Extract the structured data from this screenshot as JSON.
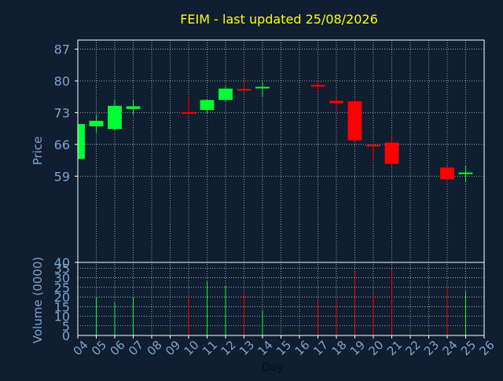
{
  "chart_data": [
    {
      "type": "candlestick",
      "title": "FEIM - last updated 25/08/2026",
      "ylabel": "Price",
      "xlabel": "Day",
      "ylim": [
        40,
        89
      ],
      "yticks": [
        40,
        59,
        66,
        73,
        80,
        87
      ],
      "x_ticks": [
        "04",
        "05",
        "06",
        "07",
        "08",
        "09",
        "10",
        "11",
        "12",
        "13",
        "14",
        "15",
        "16",
        "17",
        "18",
        "19",
        "20",
        "21",
        "22",
        "23",
        "24",
        "25",
        "26"
      ],
      "grid": true,
      "colors": {
        "up": "#00ff33",
        "down": "#ff0000",
        "axis_text": "#7fa3cc",
        "title": "#ffff00",
        "background": "#0f1e30",
        "grid": "#ffffff"
      },
      "candles": [
        {
          "day": "04",
          "open": 62.8,
          "high": 70.5,
          "low": 62.8,
          "close": 70.5
        },
        {
          "day": "05",
          "open": 70.0,
          "high": 72.5,
          "low": 68.5,
          "close": 71.2
        },
        {
          "day": "06",
          "open": 69.4,
          "high": 75.8,
          "low": 69.0,
          "close": 74.5
        },
        {
          "day": "07",
          "open": 73.8,
          "high": 76.0,
          "low": 72.5,
          "close": 74.4
        },
        {
          "day": "10",
          "open": 73.1,
          "high": 76.4,
          "low": 72.8,
          "close": 72.9
        },
        {
          "day": "11",
          "open": 73.6,
          "high": 76.0,
          "low": 73.0,
          "close": 75.8
        },
        {
          "day": "12",
          "open": 75.8,
          "high": 78.8,
          "low": 75.5,
          "close": 78.3
        },
        {
          "day": "13",
          "open": 78.2,
          "high": 80.5,
          "low": 77.8,
          "close": 78.0
        },
        {
          "day": "14",
          "open": 78.5,
          "high": 79.8,
          "low": 76.6,
          "close": 78.7
        },
        {
          "day": "17",
          "open": 79.1,
          "high": 80.2,
          "low": 77.3,
          "close": 78.8
        },
        {
          "day": "18",
          "open": 75.6,
          "high": 76.4,
          "low": 73.2,
          "close": 75.1
        },
        {
          "day": "19",
          "open": 75.5,
          "high": 76.1,
          "low": 66.6,
          "close": 66.9
        },
        {
          "day": "20",
          "open": 65.9,
          "high": 66.1,
          "low": 62.3,
          "close": 65.6
        },
        {
          "day": "21",
          "open": 66.4,
          "high": 67.6,
          "low": 61.6,
          "close": 61.7
        },
        {
          "day": "24",
          "open": 60.9,
          "high": 61.3,
          "low": 57.6,
          "close": 58.3
        },
        {
          "day": "25",
          "open": 59.6,
          "high": 61.2,
          "low": 57.6,
          "close": 59.8
        }
      ]
    },
    {
      "type": "bar",
      "ylabel": "Volume (0000)",
      "ylim": [
        0,
        38
      ],
      "yticks": [
        0,
        5,
        10,
        15,
        20,
        25,
        30,
        35
      ],
      "volumes": [
        {
          "day": "05",
          "value": 20,
          "dir": "up"
        },
        {
          "day": "06",
          "value": 17,
          "dir": "up"
        },
        {
          "day": "07",
          "value": 20,
          "dir": "up"
        },
        {
          "day": "10",
          "value": 21,
          "dir": "down"
        },
        {
          "day": "11",
          "value": 28,
          "dir": "up"
        },
        {
          "day": "12",
          "value": 26,
          "dir": "up"
        },
        {
          "day": "13",
          "value": 23,
          "dir": "down"
        },
        {
          "day": "14",
          "value": 13,
          "dir": "up"
        },
        {
          "day": "17",
          "value": 19,
          "dir": "down"
        },
        {
          "day": "18",
          "value": 18,
          "dir": "down"
        },
        {
          "day": "19",
          "value": 33,
          "dir": "down"
        },
        {
          "day": "20",
          "value": 22,
          "dir": "down"
        },
        {
          "day": "21",
          "value": 34,
          "dir": "down"
        },
        {
          "day": "24",
          "value": 24,
          "dir": "down"
        },
        {
          "day": "25",
          "value": 23,
          "dir": "up"
        }
      ]
    }
  ]
}
